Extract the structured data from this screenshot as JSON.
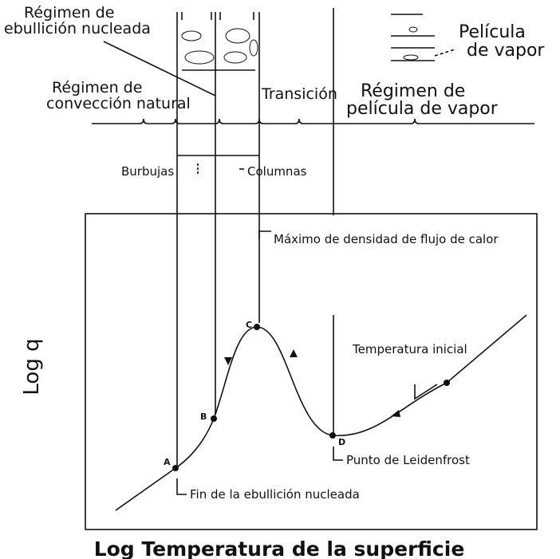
{
  "labels": {
    "nucleate_regime": [
      "Régimen de",
      "ebullición nucleada"
    ],
    "vapor_film": [
      "Película",
      "de vapor"
    ],
    "natural_convection": [
      "Régimen de",
      "convección natural"
    ],
    "transition": "Transición",
    "film_regime": [
      "Régimen de",
      "película de vapor"
    ],
    "bubbles": "Burbujas",
    "columns": "Columnas",
    "max_heat_flux": "Máximo de densidad de flujo de calor",
    "initial_temperature": "Temperatura inicial",
    "leidenfrost": "Punto de Leidenfrost",
    "end_nucleate": "Fin de la ebullición nucleada"
  },
  "points": [
    "A",
    "B",
    "C",
    "D"
  ],
  "axes": {
    "y_label": "Log q",
    "x_label": "Log Temperatura de la superficie"
  }
}
